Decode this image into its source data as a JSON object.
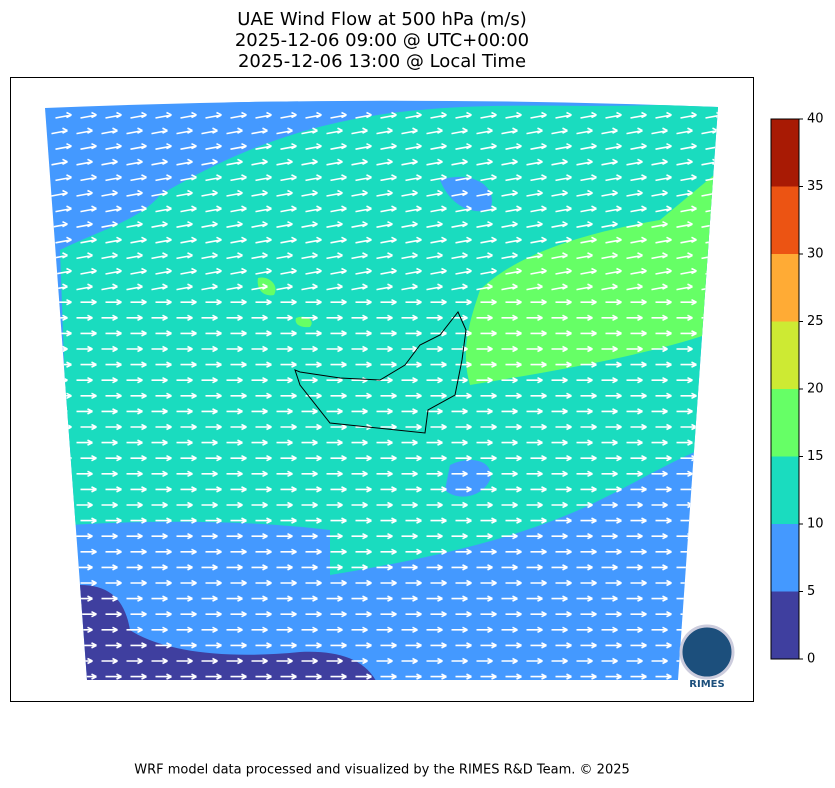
{
  "title": [
    "UAE Wind Flow at 500 hPa (m/s)",
    "2025-12-06 09:00 @ UTC+00:00",
    "2025-12-06 13:00 @ Local Time"
  ],
  "colorbar": {
    "ticks": [
      0,
      5,
      10,
      15,
      20,
      25,
      30,
      35,
      40
    ],
    "colors": [
      "#3f3f9f",
      "#4499ff",
      "#1adcbf",
      "#66ff66",
      "#cdea33",
      "#ffab35",
      "#ec5413",
      "#a81a04"
    ]
  },
  "logo": "RIMES",
  "footer": "WRF model data processed and visualized by the RIMES R&D Team. © 2025"
}
